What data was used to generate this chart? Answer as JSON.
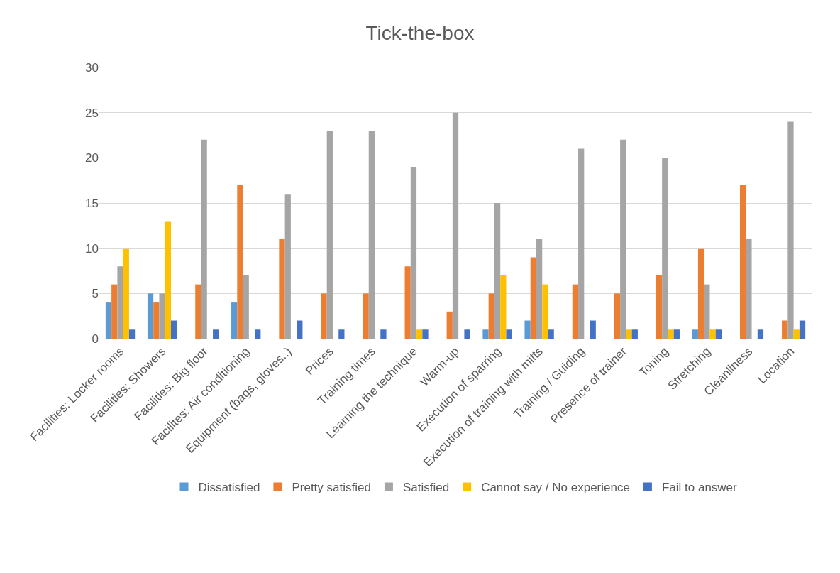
{
  "chart_data": {
    "type": "bar",
    "title": "Tick-the-box",
    "categories": [
      "Facilities: Locker rooms",
      "Facilities: Showers",
      "Facilities: Big floor",
      "Facilites: Air conditioning",
      "Equipment (bags, gloves..)",
      "Prices",
      "Training times",
      "Learning the technique",
      "Warm-up",
      "Execution of sparring",
      "Execution of training with mitts",
      "Training / Guiding",
      "Presence of trainer",
      "Toning",
      "Stretching",
      "Cleanliness",
      "Location"
    ],
    "series": [
      {
        "name": "Dissatisfied",
        "color": "#5b9bd5",
        "values": [
          4,
          5,
          null,
          4,
          null,
          null,
          null,
          null,
          null,
          1,
          2,
          null,
          null,
          null,
          1,
          null,
          null
        ]
      },
      {
        "name": "Pretty satisfied",
        "color": "#ed7d31",
        "values": [
          6,
          4,
          6,
          17,
          11,
          5,
          5,
          8,
          3,
          5,
          9,
          6,
          5,
          7,
          10,
          17,
          2
        ]
      },
      {
        "name": "Satisfied",
        "color": "#a5a5a5",
        "values": [
          8,
          5,
          22,
          7,
          16,
          23,
          23,
          19,
          25,
          15,
          11,
          21,
          22,
          20,
          6,
          11,
          24
        ]
      },
      {
        "name": "Cannot say / No experience",
        "color": "#ffc000",
        "values": [
          10,
          13,
          null,
          null,
          null,
          null,
          null,
          1,
          null,
          7,
          6,
          null,
          1,
          1,
          1,
          null,
          1
        ]
      },
      {
        "name": "Fail to answer",
        "color": "#4472c4",
        "values": [
          1,
          2,
          1,
          1,
          2,
          1,
          1,
          1,
          1,
          1,
          1,
          2,
          1,
          1,
          1,
          1,
          2
        ]
      }
    ],
    "ylim": [
      0,
      30
    ],
    "yticks": [
      0,
      5,
      10,
      15,
      20,
      25,
      30
    ],
    "grid": "y",
    "legend": "bottom"
  }
}
